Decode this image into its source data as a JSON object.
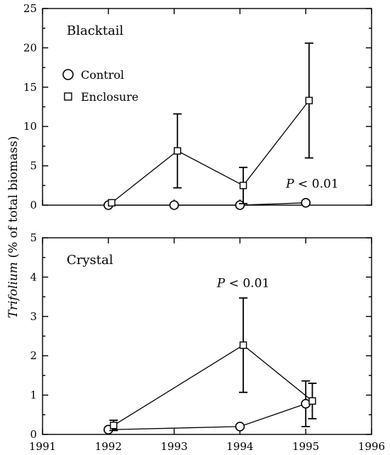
{
  "figure": {
    "ylabel_italic": "Trifolium",
    "ylabel_rest": " (% of total biomass)"
  },
  "chart_data": [
    {
      "type": "line",
      "panel_label": "Blacktail",
      "xlim": [
        1991,
        1996
      ],
      "ylim": [
        0,
        25
      ],
      "yticks": [
        0,
        5,
        10,
        15,
        20,
        25
      ],
      "xticks": [
        1991,
        1992,
        1993,
        1994,
        1995,
        1996
      ],
      "x_tick_labels_shown": false,
      "legend": {
        "placement": "upper-left",
        "entries": [
          {
            "name": "Control",
            "marker": "circle"
          },
          {
            "name": "Enclosure",
            "marker": "square"
          }
        ]
      },
      "series": [
        {
          "name": "Control",
          "marker": "circle",
          "x": [
            1992,
            1993,
            1994,
            1995
          ],
          "y": [
            0,
            0,
            0,
            0.3
          ],
          "err": [
            0,
            0,
            0,
            0.1
          ]
        },
        {
          "name": "Enclosure",
          "marker": "square",
          "x": [
            1992.05,
            1993.05,
            1994.05,
            1995.05
          ],
          "y": [
            0.3,
            6.9,
            2.5,
            13.3
          ],
          "err": [
            0.1,
            4.7,
            2.3,
            7.3
          ]
        }
      ],
      "annotations": [
        {
          "italic": "P",
          "text": " < 0.01",
          "x": 1995.1,
          "y": 2.2
        }
      ]
    },
    {
      "type": "line",
      "panel_label": "Crystal",
      "xlim": [
        1991,
        1996
      ],
      "ylim": [
        0,
        5
      ],
      "yticks": [
        0,
        1,
        2,
        3,
        4,
        5
      ],
      "xticks": [
        1991,
        1992,
        1993,
        1994,
        1995,
        1996
      ],
      "x_tick_labels_shown": true,
      "series": [
        {
          "name": "Control",
          "marker": "circle",
          "x": [
            1992,
            1994,
            1995
          ],
          "y": [
            0.12,
            0.2,
            0.78
          ],
          "err": [
            0.05,
            0.03,
            0.58
          ]
        },
        {
          "name": "Enclosure",
          "marker": "square",
          "x": [
            1992.08,
            1994.05,
            1995.1
          ],
          "y": [
            0.23,
            2.27,
            0.85
          ],
          "err": [
            0.13,
            1.2,
            0.45
          ]
        }
      ],
      "annotations": [
        {
          "italic": "P",
          "text": " < 0.01",
          "x": 1994.05,
          "y": 3.75
        }
      ]
    }
  ]
}
